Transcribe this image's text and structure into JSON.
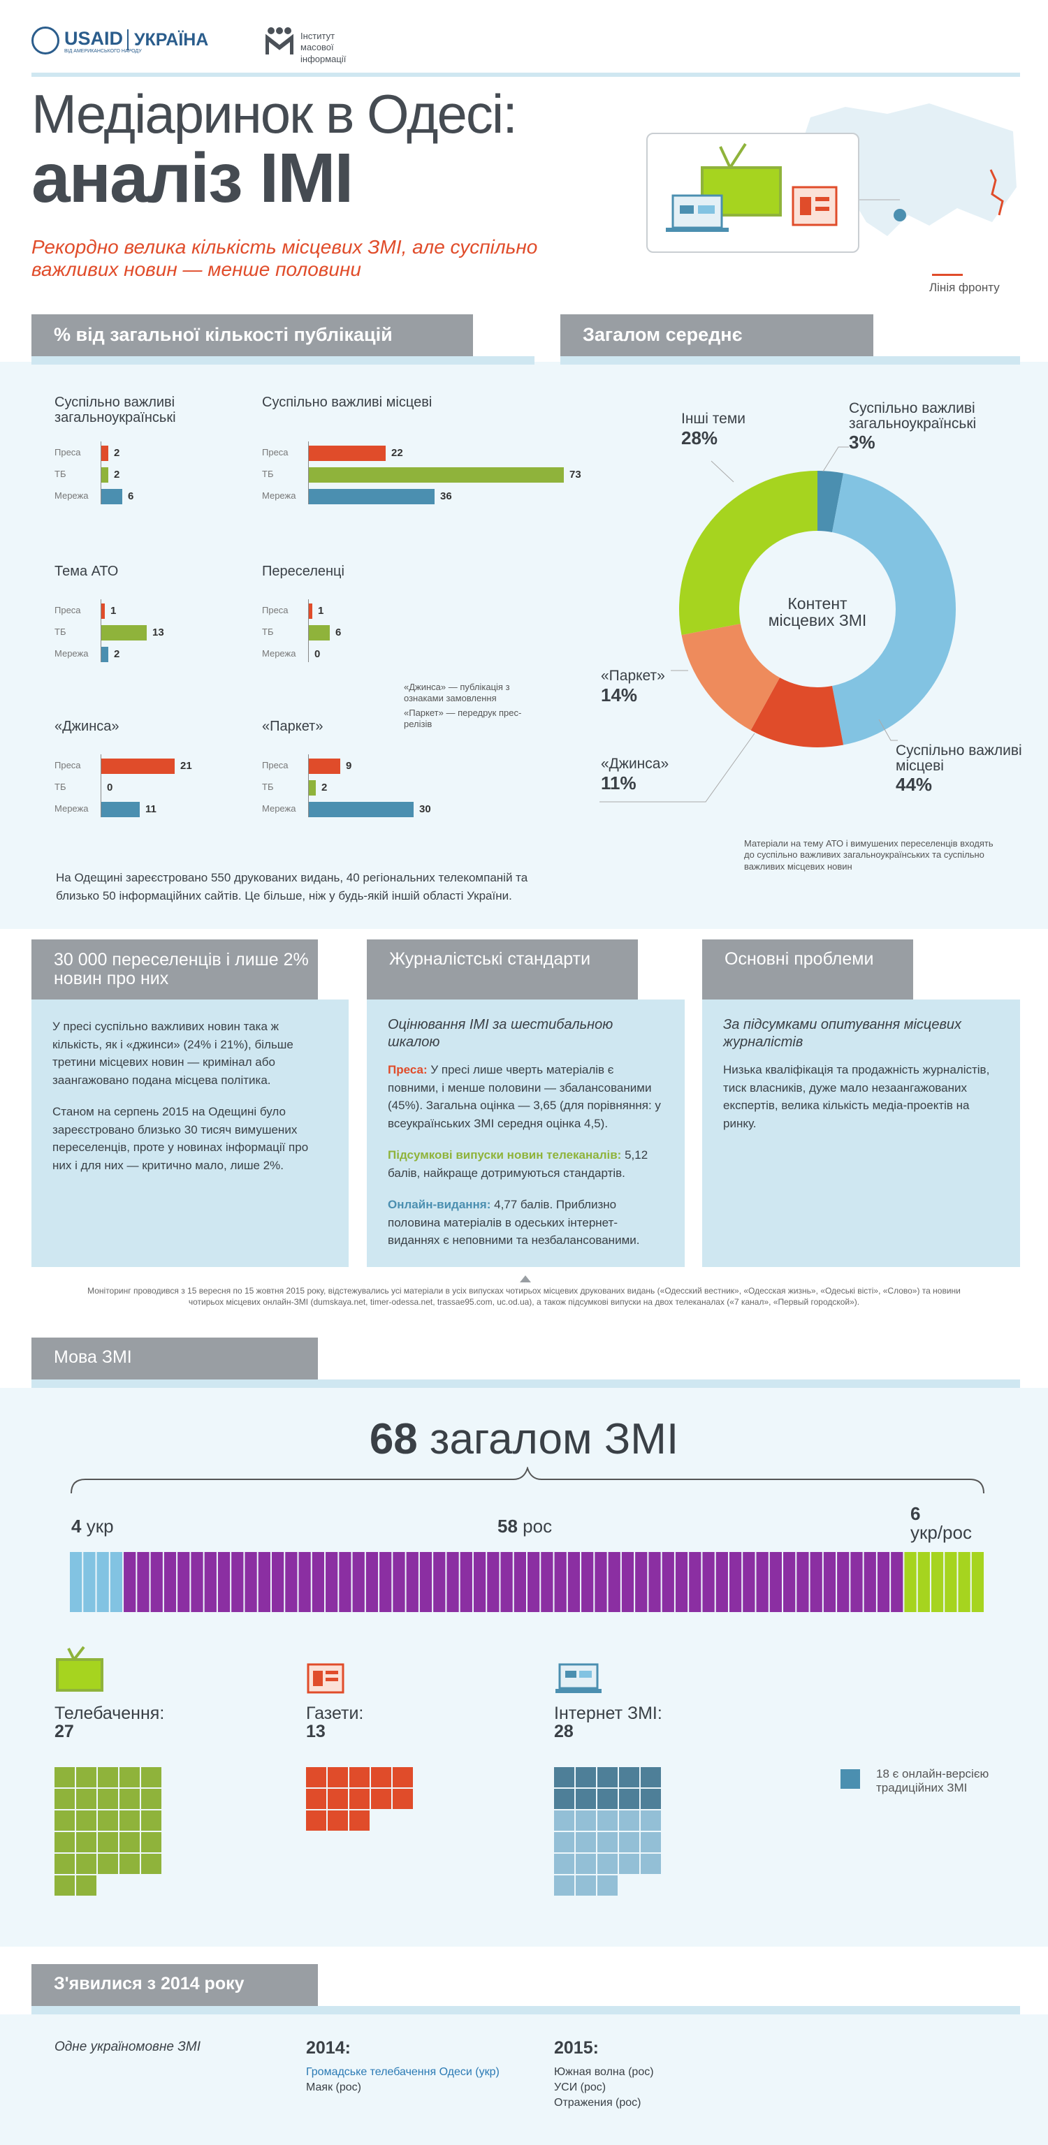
{
  "header": {
    "usaid": "USAID",
    "usaid_sub": "ВІД АМЕРИКАНСЬКОГО НАРОДУ",
    "ukraine": "УКРАЇНА",
    "imi": "Інститут масової інформації"
  },
  "title": {
    "line1": "Медіаринок в Одесі:",
    "line2": "аналіз ІМІ"
  },
  "subtitle": "Рекордно велика кількість місцевих ЗМІ, але суспільно важливих новин — менше половини",
  "map_legend": "Лінія фронту",
  "sections": {
    "pubs": "% від загальної кількості публікацій",
    "avg": "Загалом середнє",
    "idps": "30 000 переселенців і лише 2% новин про них",
    "standards": "Журналістські стандарти",
    "problems": "Основні проблеми",
    "language": "Мова ЗМІ",
    "since2014": "З'явилися з 2014 року"
  },
  "chart_data": [
    {
      "type": "bar",
      "title": "Суспільно важливі загальноукраїнські",
      "categories": [
        "Преса",
        "ТБ",
        "Мережа"
      ],
      "values": [
        2,
        2,
        6
      ]
    },
    {
      "type": "bar",
      "title": "Суспільно важливі місцеві",
      "categories": [
        "Преса",
        "ТБ",
        "Мережа"
      ],
      "values": [
        22,
        73,
        36
      ]
    },
    {
      "type": "bar",
      "title": "Тема АТО",
      "categories": [
        "Преса",
        "ТБ",
        "Мережа"
      ],
      "values": [
        1,
        13,
        2
      ]
    },
    {
      "type": "bar",
      "title": "Переселенці",
      "categories": [
        "Преса",
        "ТБ",
        "Мережа"
      ],
      "values": [
        1,
        6,
        0
      ]
    },
    {
      "type": "bar",
      "title": "«Джинса»",
      "categories": [
        "Преса",
        "ТБ",
        "Мережа"
      ],
      "values": [
        21,
        0,
        11
      ]
    },
    {
      "type": "bar",
      "title": "«Паркет»",
      "categories": [
        "Преса",
        "ТБ",
        "Мережа"
      ],
      "values": [
        9,
        2,
        30
      ]
    },
    {
      "type": "pie",
      "title": "Контент місцевих ЗМІ",
      "slices": [
        {
          "label": "Суспільно важливі загальноукраїнські",
          "pct": "3%",
          "value": 3,
          "color": "#4b8fb0"
        },
        {
          "label": "Суспільно важливі місцеві",
          "pct": "44%",
          "value": 44,
          "color": "#82c3e2"
        },
        {
          "label": "«Джинса»",
          "pct": "11%",
          "value": 11,
          "color": "#e04c2a"
        },
        {
          "label": "«Паркет»",
          "pct": "14%",
          "value": 14,
          "color": "#ee8b5c"
        },
        {
          "label": "Інші теми",
          "pct": "28%",
          "value": 28,
          "color": "#a6d41f"
        }
      ]
    },
    {
      "type": "bar",
      "title": "68 загалом ЗМІ",
      "categories": [
        "укр",
        "рос",
        "укр/рос"
      ],
      "values": [
        4,
        58,
        6
      ]
    }
  ],
  "colors": {
    "press": "#e04c2a",
    "tv": "#8fb33b",
    "web": "#4b8fb0",
    "green": "#a6d41f",
    "purple": "#8b2fa2",
    "lightblue": "#82c3e2"
  },
  "legend_note": {
    "jynsa": "«Джинса» — публікація з ознаками замовлення",
    "parket": "«Паркет» — передрук прес-релізів"
  },
  "pie_note": "Матеріали на тему АТО і вимушених переселенців входять до суспільно важливих загальноукраїнських та суспільно важливих місцевих новин",
  "registered": "На Одещині зареєстровано 550 друкованих видань, 40 регіональних телекомпаній та близько 50 інформаційних сайтів. Це більше, ніж у будь-якій іншій області України.",
  "idps": {
    "p1": "У пресі суспільно важливих новин така ж кількість, як і «джинси» (24% і 21%), більше третини місцевих новин — кримінал або заангажовано подана місцева політика.",
    "p2": "Станом на серпень 2015 на Одещині було зареєстровано близько 30 тисяч вимушених переселенців, проте у новинах інформації про них і для них — критично мало, лише 2%."
  },
  "standards": {
    "title": "Оцінювання ІМІ за шестибальною шкалою",
    "press_label": "Преса:",
    "press": " У пресі лише чверть матеріалів є повними, і менше половини — збалансованими (45%). Загальна оцінка — 3,65 (для порівняння: у всеукраїнських ЗМІ середня оцінка 4,5).",
    "tv_label": "Підсумкові випуски новин телеканалів:",
    "tv": " 5,12 балів, найкраще дотримуються стандартів.",
    "web_label": "Онлайн-видання:",
    "web": " 4,77 балів. Приблизно половина матеріалів в одеських інтернет-виданнях є неповними та незбалансованими."
  },
  "problems": {
    "title": "За підсумками опитування місцевих журналістів",
    "text": "Низька кваліфікація та продажність журналістів, тиск власників, дуже мало незаангажованих експертів, велика кількість медіа-проектів на ринку."
  },
  "monitoring": "Моніторинг проводився з 15 вересня по 15 жовтня 2015 року, відстежувались усі матеріали в усіх випусках чотирьох місцевих друкованих видань («Одесский вестник», «Одесская жизнь», «Одеські вісті», «Слово») та новини чотирьох місцевих онлайн-ЗМІ (dumskaya.net, timer-odessa.net, trassae95.com, uc.od.ua), а також підсумкові випуски на двох телеканалах («7 канал», «Первый городской»).",
  "language": {
    "total_num": "68",
    "total_text": "загалом ЗМІ",
    "ukr_num": "4",
    "ukr": "укр",
    "rus_num": "58",
    "rus": "рос",
    "mix_num": "6",
    "mix": "укр/рос"
  },
  "media": {
    "tv_label": "Телебачення:",
    "tv_num": "27",
    "tv_count": 27,
    "news_label": "Газети:",
    "news_num": "13",
    "news_count": 13,
    "web_label": "Інтернет ЗМІ:",
    "web_num": "28",
    "web_count": 28,
    "web_dark": 10,
    "web_note": "18 є онлайн-версією традиційних ЗМІ"
  },
  "since": {
    "one": "Одне україномовне ЗМІ",
    "y2014": "2014:",
    "y2014_a": "Громадське телебачення Одеси (укр)",
    "y2014_b": "Маяк (рос)",
    "y2015": "2015:",
    "y2015_a": "Южная волна (рос)",
    "y2015_b": "УСИ (рос)",
    "y2015_c": "Отражения (рос)"
  }
}
